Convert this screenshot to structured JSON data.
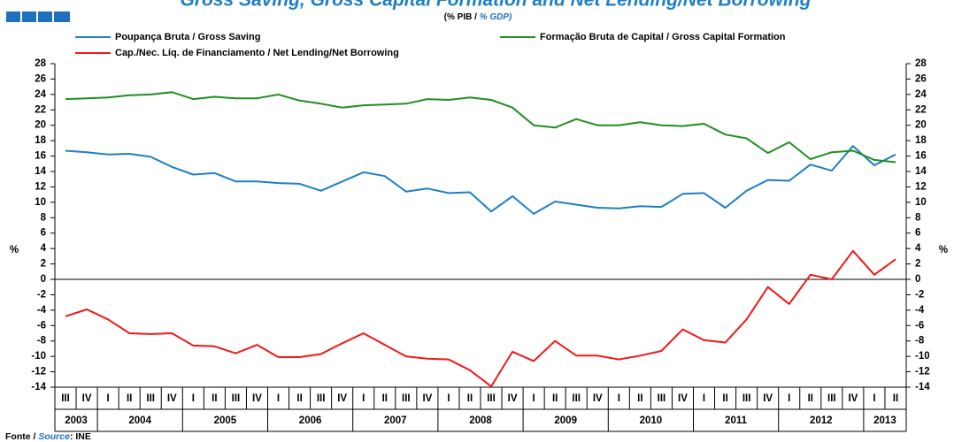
{
  "chart_data": {
    "type": "line",
    "title": "Gross Saving, Gross Capital Formation and Net Lending/Net Borrowing",
    "subtitle_pt": "(% PIB /",
    "subtitle_en": "% GDP)",
    "y_label": "%",
    "y2_label": "%",
    "source_pt": "Fonte /",
    "source_en": "Source",
    "source_rest": ": INE",
    "categories": [
      "III",
      "IV",
      "I",
      "II",
      "III",
      "IV",
      "I",
      "II",
      "III",
      "IV",
      "I",
      "II",
      "III",
      "IV",
      "I",
      "II",
      "III",
      "IV",
      "I",
      "II",
      "III",
      "IV",
      "I",
      "II",
      "III",
      "IV",
      "I",
      "II",
      "III",
      "IV",
      "I",
      "II",
      "III",
      "IV",
      "I",
      "II",
      "III",
      "IV",
      "I",
      "II"
    ],
    "years": [
      "2003",
      "2004",
      "2005",
      "2006",
      "2007",
      "2008",
      "2009",
      "2010",
      "2011",
      "2012",
      "2013"
    ],
    "series": [
      {
        "name": "Poupança Bruta / Gross Saving",
        "color": "#1f7fc4",
        "values": [
          16.7,
          16.5,
          16.2,
          16.3,
          15.9,
          14.6,
          13.6,
          13.8,
          12.7,
          12.7,
          12.5,
          12.4,
          11.5,
          12.7,
          13.9,
          13.4,
          11.4,
          11.8,
          11.2,
          11.3,
          8.8,
          10.8,
          8.5,
          10.1,
          9.7,
          9.3,
          9.2,
          9.5,
          9.4,
          11.1,
          11.2,
          9.3,
          11.5,
          12.9,
          12.8,
          14.9,
          14.1,
          17.3,
          14.8,
          16.2
        ]
      },
      {
        "name": "Formação Bruta de Capital / Gross Capital Formation",
        "color": "#1e8f1e",
        "values": [
          23.4,
          23.5,
          23.6,
          23.9,
          24.0,
          24.3,
          23.4,
          23.7,
          23.5,
          23.5,
          24.0,
          23.2,
          22.8,
          22.3,
          22.6,
          22.7,
          22.8,
          23.4,
          23.3,
          23.6,
          23.3,
          22.3,
          20.0,
          19.7,
          20.8,
          20.0,
          20.0,
          20.4,
          20.0,
          19.9,
          20.2,
          18.8,
          18.3,
          16.4,
          17.8,
          15.6,
          16.5,
          16.7,
          15.5,
          15.2
        ]
      },
      {
        "name": "Cap./Nec. Líq. de Financiamento / Net Lending/Net Borrowing",
        "color": "#f01818",
        "values": [
          -4.8,
          -3.9,
          -5.2,
          -7.0,
          -7.1,
          -7.0,
          -8.6,
          -8.7,
          -9.6,
          -8.5,
          -10.1,
          -10.1,
          -9.7,
          -8.3,
          -7.0,
          -8.5,
          -10.0,
          -10.3,
          -10.4,
          -11.8,
          -13.9,
          -9.4,
          -10.6,
          -8.0,
          -9.9,
          -9.9,
          -10.4,
          -9.9,
          -9.3,
          -6.5,
          -7.9,
          -8.2,
          -5.2,
          -1.0,
          -3.2,
          0.6,
          0.0,
          3.7,
          0.6,
          2.6
        ]
      }
    ],
    "ylim": [
      -14,
      28
    ],
    "yticks": [
      -14,
      -12,
      -10,
      -8,
      -6,
      -4,
      -2,
      0,
      2,
      4,
      6,
      8,
      10,
      12,
      14,
      16,
      18,
      20,
      22,
      24,
      26,
      28
    ],
    "y2lim": [
      -14,
      28
    ],
    "y2ticks": [
      -14,
      -12,
      -10,
      -8,
      -6,
      -4,
      -2,
      0,
      2,
      4,
      6,
      8,
      10,
      12,
      14,
      16,
      18,
      20,
      22,
      24,
      26,
      28
    ],
    "grid": false
  }
}
